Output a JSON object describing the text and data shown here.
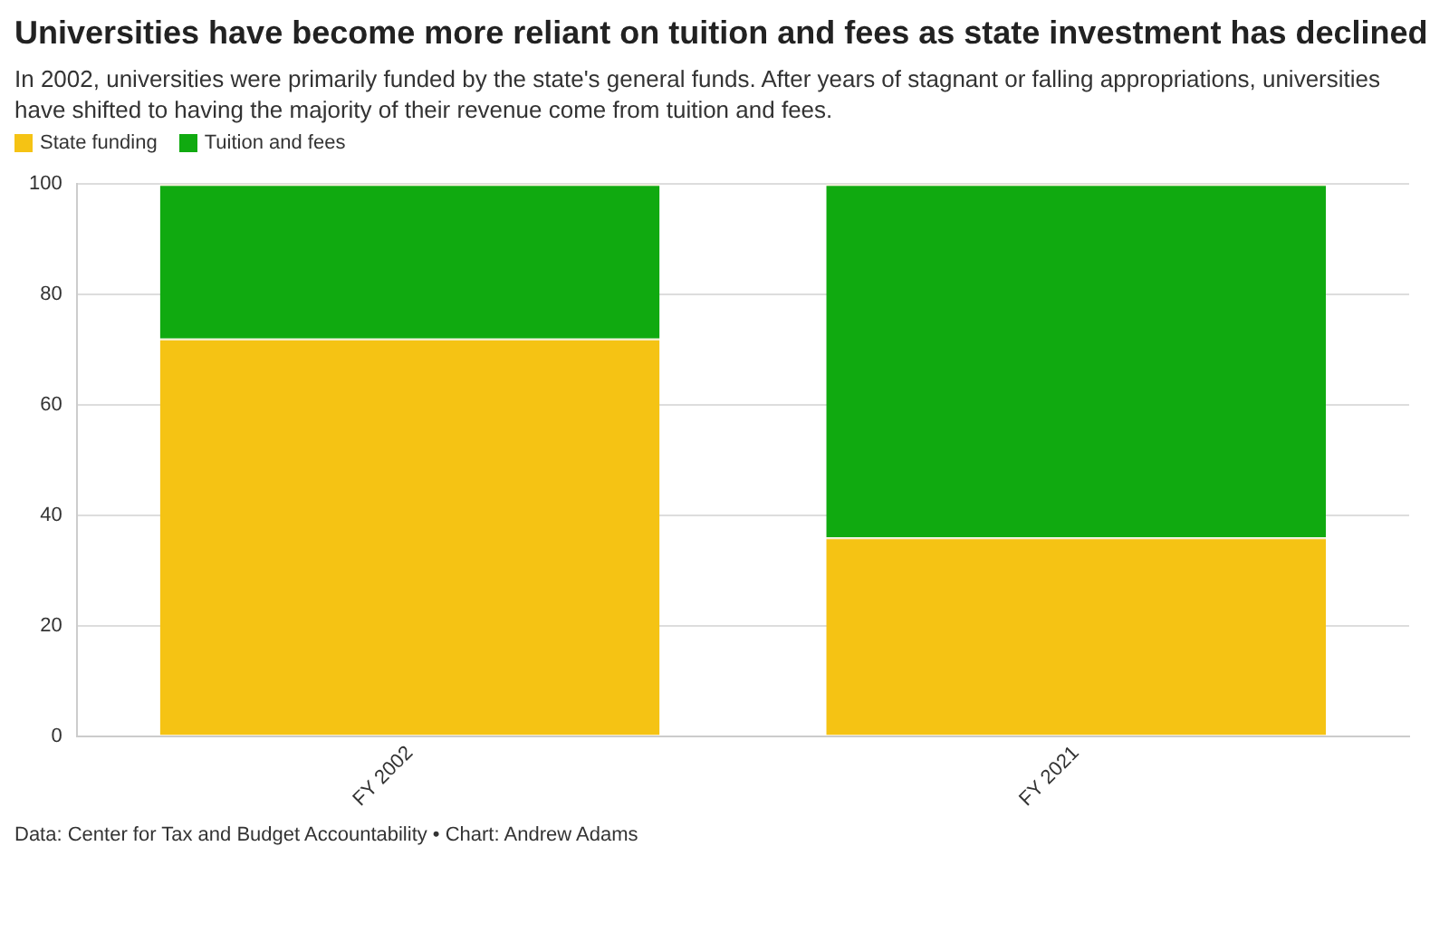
{
  "chart_data": {
    "type": "bar",
    "title": "Universities have become more reliant on tuition and fees as state investment has declined",
    "subtitle": "In 2002, universities were primarily funded by the state's general funds. After years of stagnant or falling appropriations, universities have shifted to having the majority of their revenue come from tuition and fees.",
    "categories": [
      "FY 2002",
      "FY 2021"
    ],
    "series": [
      {
        "name": "State funding",
        "color": "#f5c314",
        "values": [
          72,
          36
        ]
      },
      {
        "name": "Tuition and fees",
        "color": "#10aa10",
        "values": [
          28,
          64
        ]
      }
    ],
    "stacked": true,
    "ylim": [
      0,
      100
    ],
    "yticks": [
      0,
      20,
      40,
      60,
      80,
      100
    ],
    "grid": "y",
    "legend": "top left",
    "annotations": [
      "Data: Center for Tax and Budget Accountability • Chart: Andrew Adams"
    ]
  }
}
